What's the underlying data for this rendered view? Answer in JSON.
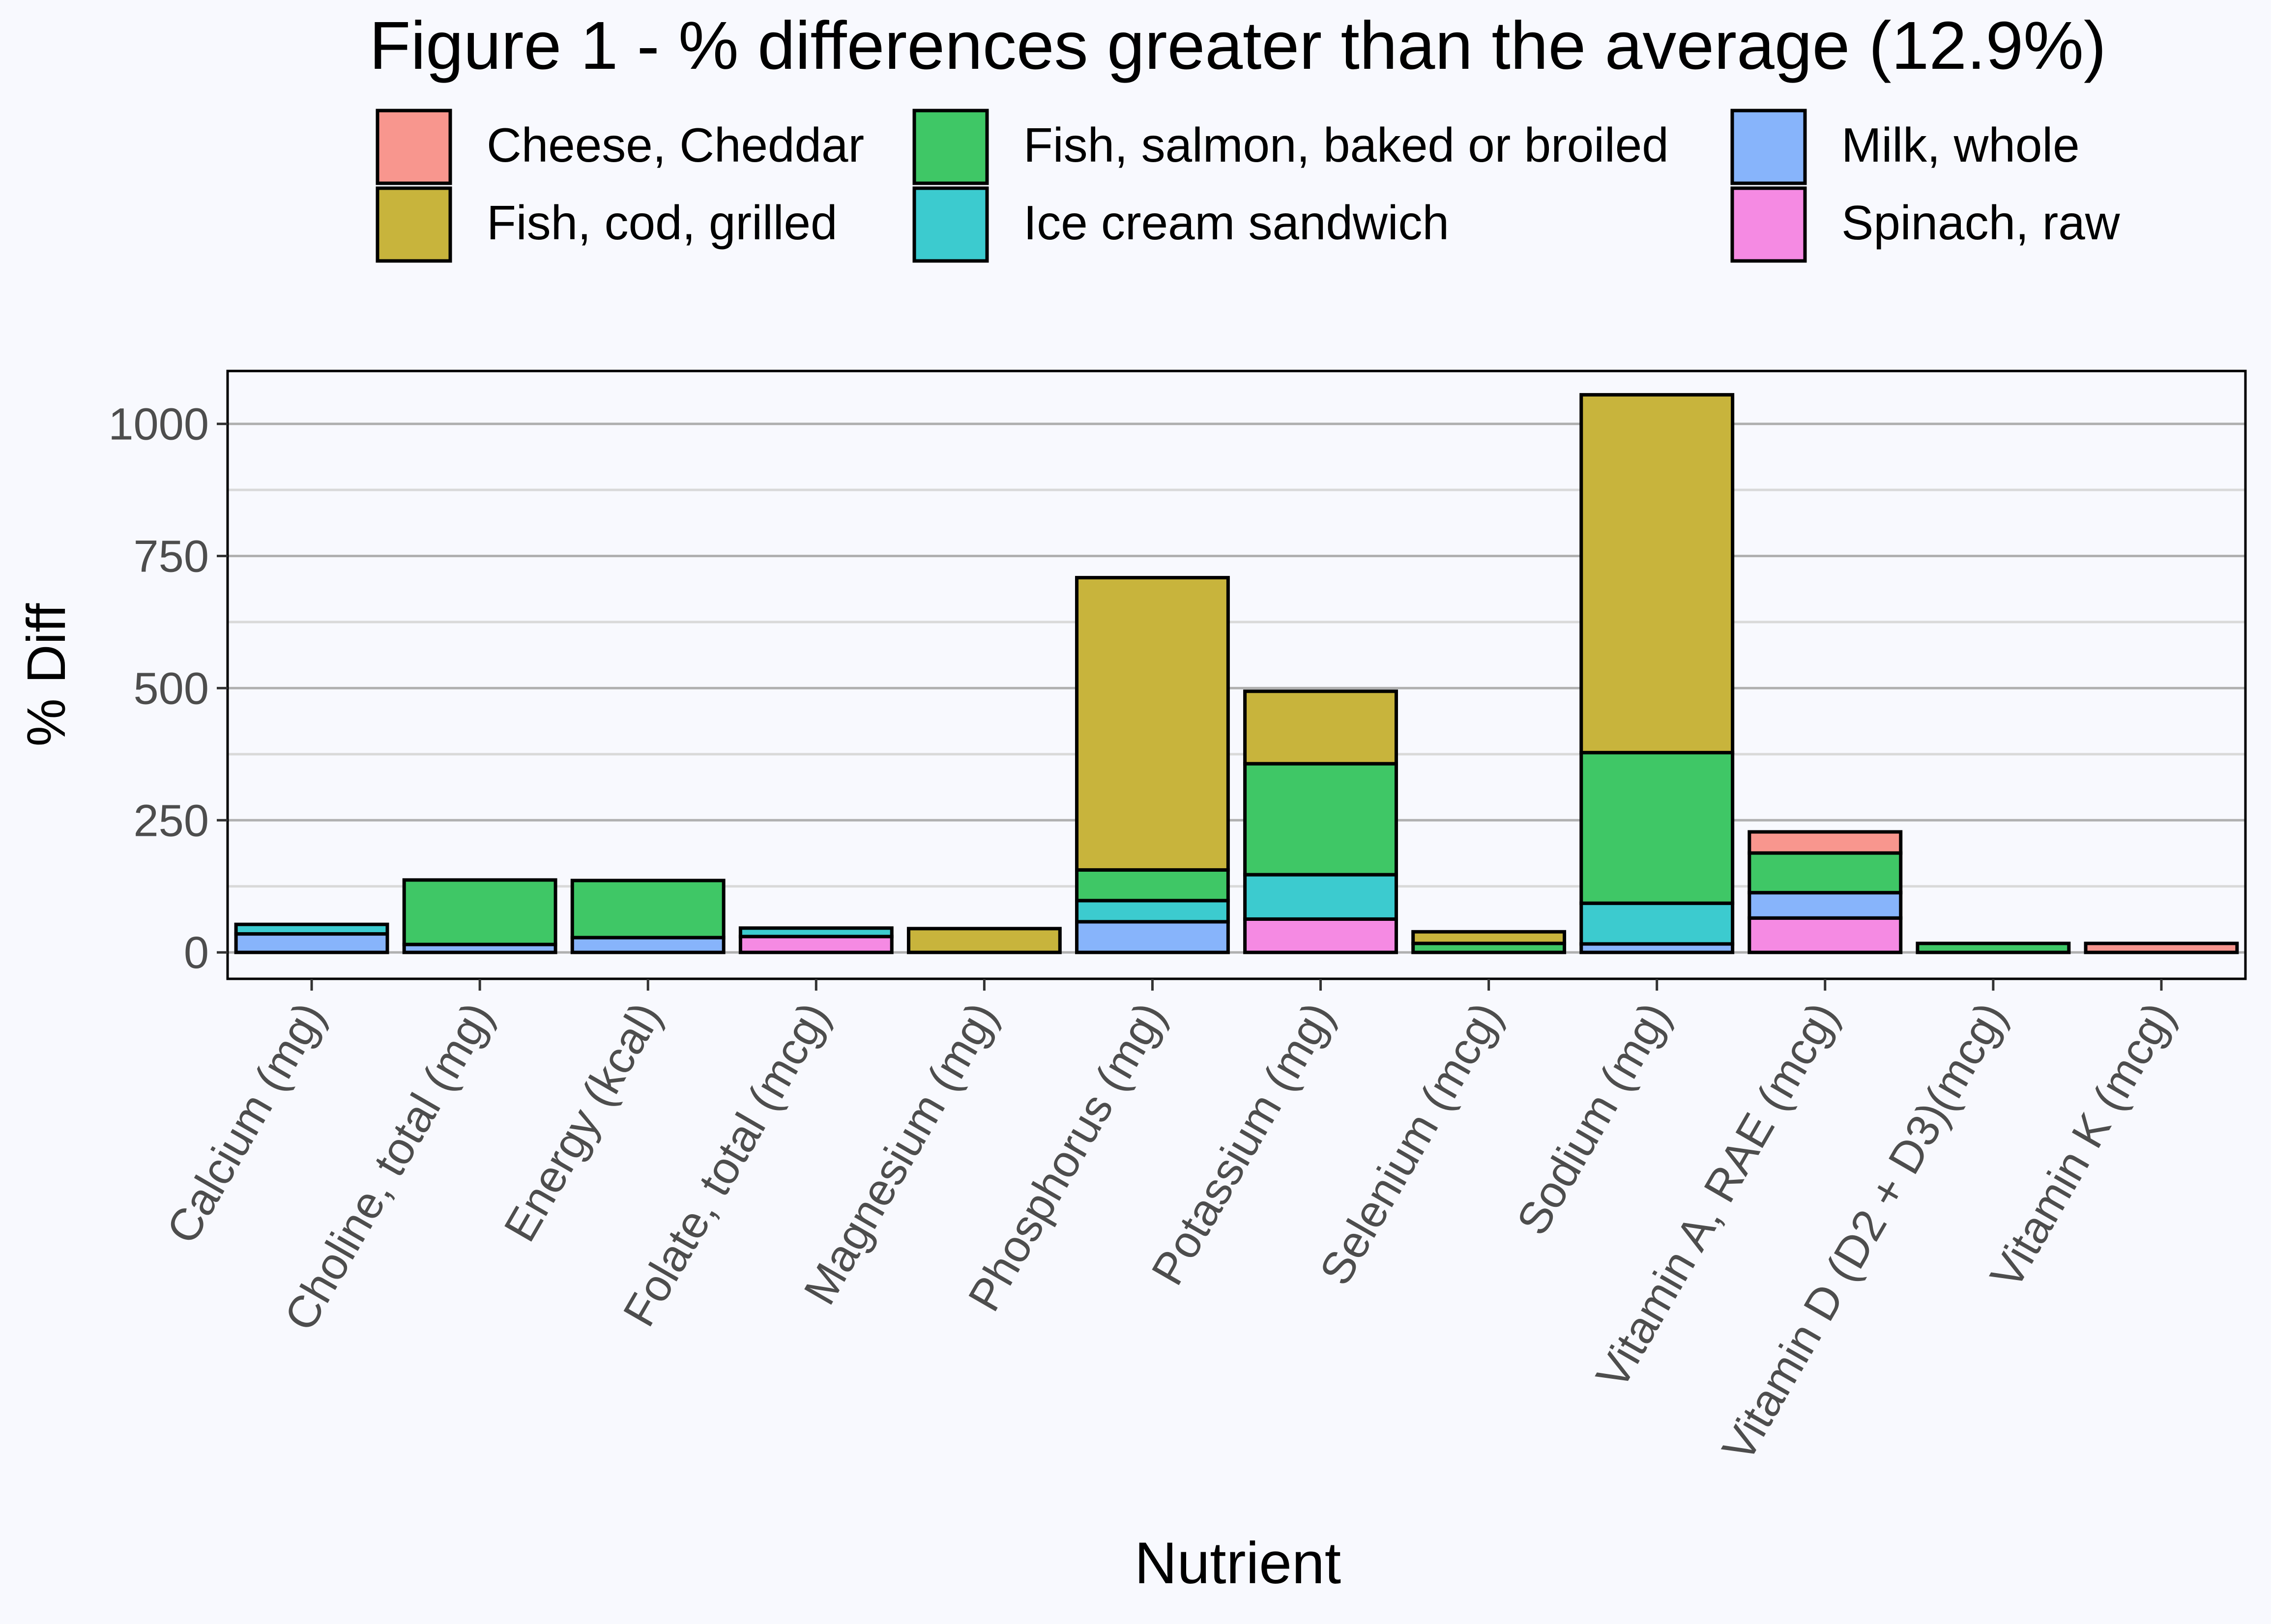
{
  "chart_data": {
    "type": "bar",
    "stacked": true,
    "title": "Figure 1 - % differences greater than the average (12.9%)",
    "xlabel": "Nutrient",
    "ylabel": "% Diff",
    "ylim": [
      -50,
      1100
    ],
    "y_ticks": [
      0,
      250,
      500,
      750,
      1000
    ],
    "grid": true,
    "legend_position": "top",
    "categories": [
      "Calcium (mg)",
      "Choline, total (mg)",
      "Energy (kcal)",
      "Folate, total (mcg)",
      "Magnesium (mg)",
      "Phosphorus (mg)",
      "Potassium (mg)",
      "Selenium (mcg)",
      "Sodium (mg)",
      "Vitamin A, RAE (mcg)",
      "Vitamin D (D2 + D3)(mcg)",
      "Vitamin K (mcg)"
    ],
    "stack_order": [
      "Spinach, raw",
      "Milk, whole",
      "Ice cream sandwich",
      "Fish, salmon, baked or broiled",
      "Fish, cod, grilled",
      "Cheese, Cheddar"
    ],
    "series": [
      {
        "name": "Cheese, Cheddar",
        "color": "#f8968e",
        "values": [
          0,
          0,
          0,
          0,
          0,
          0,
          0,
          0,
          0,
          40,
          0,
          17
        ]
      },
      {
        "name": "Fish, cod, grilled",
        "color": "#c8b43c",
        "values": [
          0,
          0,
          0,
          0,
          45,
          553,
          137,
          22,
          677,
          0,
          0,
          0
        ]
      },
      {
        "name": "Fish, salmon, baked or broiled",
        "color": "#3fc766",
        "values": [
          0,
          122,
          108,
          0,
          0,
          58,
          210,
          17,
          285,
          75,
          17,
          0
        ]
      },
      {
        "name": "Ice cream sandwich",
        "color": "#3ccbcf",
        "values": [
          18,
          0,
          0,
          16,
          0,
          40,
          84,
          0,
          77,
          0,
          0,
          0
        ]
      },
      {
        "name": "Milk, whole",
        "color": "#87b4fb",
        "values": [
          35,
          15,
          28,
          0,
          0,
          58,
          0,
          0,
          16,
          48,
          0,
          0
        ]
      },
      {
        "name": "Spinach, raw",
        "color": "#f58ae3",
        "values": [
          0,
          0,
          0,
          30,
          0,
          0,
          63,
          0,
          0,
          65,
          0,
          0
        ]
      }
    ],
    "legend_entries": [
      {
        "name": "Cheese, Cheddar",
        "color": "#f8968e"
      },
      {
        "name": "Fish, cod, grilled",
        "color": "#c8b43c"
      },
      {
        "name": "Fish, salmon, baked or broiled",
        "color": "#3fc766"
      },
      {
        "name": "Ice cream sandwich",
        "color": "#3ccbcf"
      },
      {
        "name": "Milk, whole",
        "color": "#87b4fb"
      },
      {
        "name": "Spinach, raw",
        "color": "#f58ae3"
      }
    ]
  }
}
